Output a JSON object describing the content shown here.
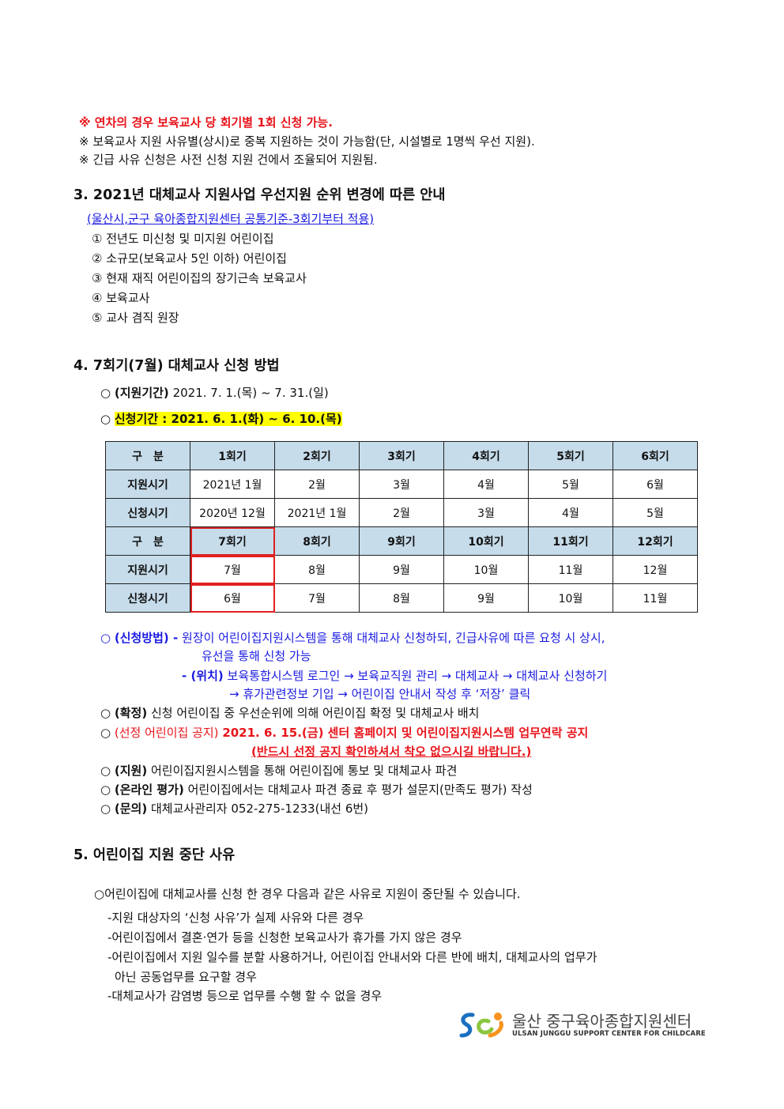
{
  "notes": [
    "※ 연차의 경우 보육교사 당 회기별 1회 신청 가능.",
    "※ 보육교사 지원 사유별(상시)로 중복 지원하는 것이 가능함(단, 시설별로 1명씩 우선 지원).",
    "※ 긴급 사유 신청은 사전 신청 지원 건에서 조율되어 지원됨."
  ],
  "section3": {
    "title": "3. 2021년 대체교사 지원사업 우선지원 순위 변경에 따른 안내",
    "subtitle": "(울산시,군구 육아종합지원센터 공통기준-3회기부터 적용)",
    "items": [
      "① 전년도 미신청 및 미지원 어린이집",
      "② 소규모(보육교사 5인 이하) 어린이집",
      "③ 현재 재직 어린이집의 장기근속 보육교사",
      "④ 보육교사",
      "⑤ 교사 겸직 원장"
    ]
  },
  "section4": {
    "title": "4. 7회기(7월) 대체교사 신청 방법",
    "support_period_label": "(지원기간)",
    "support_period": "2021. 7. 1.(목) ~ 7. 31.(일)",
    "apply_period": "신청기간 : 2021. 6. 1.(화) ~ 6. 10.(목)",
    "bullet": "○",
    "table": {
      "rows": [
        [
          "구　분",
          "1회기",
          "2회기",
          "3회기",
          "4회기",
          "5회기",
          "6회기"
        ],
        [
          "지원시기",
          "2021년 1월",
          "2월",
          "3월",
          "4월",
          "5월",
          "6월"
        ],
        [
          "신청시기",
          "2020년 12월",
          "2021년 1월",
          "2월",
          "3월",
          "4월",
          "5월"
        ],
        [
          "구　분",
          "7회기",
          "8회기",
          "9회기",
          "10회기",
          "11회기",
          "12회기"
        ],
        [
          "지원시기",
          "7월",
          "8월",
          "9월",
          "10월",
          "11월",
          "12월"
        ],
        [
          "신청시기",
          "6월",
          "7월",
          "8월",
          "9월",
          "10월",
          "11월"
        ]
      ],
      "highlighted_session": "7회기"
    },
    "method_label": "(신청방법) -",
    "method_line1": "원장이 어린이집지원시스템을 통해 대체교사 신청하되, 긴급사유에 따른 요청 시 상시,",
    "method_line2": "유선을 통해 신청 가능",
    "location_label": "- (위치)",
    "location_line1": "보육통합시스템 로그인 → 보육교직원 관리 → 대체교사 → 대체교사 신청하기",
    "location_line2": "→ 휴가관련정보 기입 → 어린이집 안내서 작성 후 ‘저장’ 클릭",
    "confirm_label": "(확정)",
    "confirm": "신청 어린이집 중 우선순위에 의해 어린이집 확정 및 대체교사 배치",
    "notice_label": "(선정 어린이집 공지)",
    "notice": "2021. 6. 15.(금) 센터 홈페이지 및 어린이집지원시스템 업무연락 공지",
    "notice_warning": "(반드시 선정 공지 확인하셔서 착오 없으시길 바랍니다.)",
    "support_label": "(지원)",
    "support": "어린이집지원시스템을 통해 어린이집에 통보 및 대체교사 파견",
    "eval_label": "(온라인 평가)",
    "eval": "어린이집에서는 대체교사 파견 종료 후 평가 설문지(만족도 평가) 작성",
    "contact_label": "(문의)",
    "contact": "대체교사관리자 052-275-1233(내선 6번)"
  },
  "section5": {
    "title": "5. 어린이집 지원 중단 사유",
    "intro": "○어린이집에 대체교사를 신청 한 경우 다음과 같은 사유로 지원이 중단될 수 있습니다.",
    "items": [
      "-지원 대상자의 ‘신청 사유’가 실제 사유와 다른 경우",
      "-어린이집에서 결혼·연가 등을 신청한 보육교사가 휴가를 가지 않은 경우",
      "-어린이집에서 지원 일수를 분할 사용하거나, 어린이집 안내서와 다른 반에 배치, 대체교사의 업무가",
      "아닌 공동업무를 요구할 경우",
      "-대체교사가 감염병 등으로 업무를 수행 할 수 없을 경우"
    ]
  },
  "logo": {
    "name": "울산 중구육아종합지원센터",
    "english": "ULSAN JUNGGU SUPPORT CENTER FOR CHILDCARE"
  }
}
